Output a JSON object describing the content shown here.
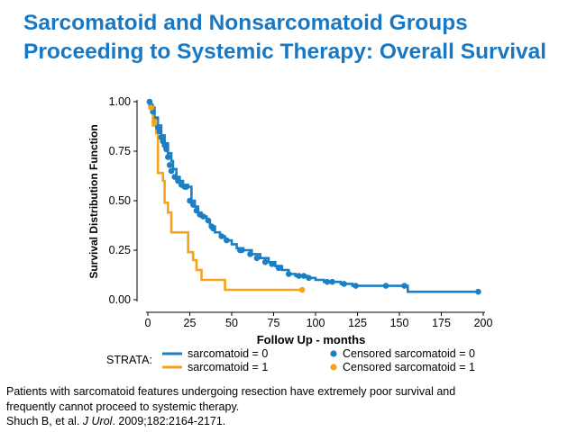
{
  "slide": {
    "title_line1": "Sarcomatoid and Nonsarcomatoid Groups",
    "title_line2": "Proceeding to Systemic Therapy: Overall Survival",
    "footer_line1": "Patients with sarcomatoid features undergoing resection have extremely poor survival and",
    "footer_line2": "frequently cannot proceed to systemic therapy.",
    "citation_authors": "Shuch B, et al. ",
    "citation_journal": "J Urol",
    "citation_rest": ". 2009;182:2164-2171."
  },
  "colors": {
    "title": "#1a78c2",
    "sarcomatoid_0": "#1a7fc4",
    "sarcomatoid_1": "#f7a21b"
  },
  "chart_data": {
    "type": "line",
    "subtype": "kaplan-meier step",
    "xlabel": "Follow Up - months",
    "ylabel": "Survival Distribution Function",
    "xlim": [
      0,
      200
    ],
    "ylim": [
      0,
      1
    ],
    "xticks": [
      "0",
      "25",
      "50",
      "75",
      "100",
      "125",
      "150",
      "175",
      "200"
    ],
    "yticks": [
      "0.00",
      "0.25",
      "0.50",
      "0.75",
      "1.00"
    ],
    "legend": {
      "title": "STRATA:",
      "items": [
        {
          "label": "sarcomatoid = 0",
          "kind": "line",
          "series": 0
        },
        {
          "label": "Censored sarcomatoid = 0",
          "kind": "dot",
          "series": 0
        },
        {
          "label": "sarcomatoid = 1",
          "kind": "line",
          "series": 1
        },
        {
          "label": "Censored sarcomatoid = 1",
          "kind": "dot",
          "series": 1
        }
      ]
    },
    "series": [
      {
        "name": "sarcomatoid = 0",
        "steps": [
          [
            0,
            1.0
          ],
          [
            2,
            0.97
          ],
          [
            4,
            0.92
          ],
          [
            6,
            0.88
          ],
          [
            8,
            0.83
          ],
          [
            10,
            0.79
          ],
          [
            12,
            0.74
          ],
          [
            14,
            0.7
          ],
          [
            15,
            0.66
          ],
          [
            17,
            0.62
          ],
          [
            19,
            0.6
          ],
          [
            21,
            0.58
          ],
          [
            24,
            0.57
          ],
          [
            26,
            0.5
          ],
          [
            28,
            0.47
          ],
          [
            30,
            0.44
          ],
          [
            32,
            0.42
          ],
          [
            35,
            0.4
          ],
          [
            37,
            0.37
          ],
          [
            40,
            0.34
          ],
          [
            43,
            0.32
          ],
          [
            46,
            0.3
          ],
          [
            50,
            0.28
          ],
          [
            53,
            0.26
          ],
          [
            57,
            0.25
          ],
          [
            62,
            0.23
          ],
          [
            67,
            0.21
          ],
          [
            72,
            0.19
          ],
          [
            76,
            0.17
          ],
          [
            80,
            0.15
          ],
          [
            84,
            0.13
          ],
          [
            88,
            0.12
          ],
          [
            95,
            0.11
          ],
          [
            100,
            0.1
          ],
          [
            105,
            0.09
          ],
          [
            115,
            0.08
          ],
          [
            122,
            0.07
          ],
          [
            155,
            0.04
          ],
          [
            197,
            0.04
          ]
        ],
        "censored": [
          [
            1,
            1.0
          ],
          [
            2,
            0.98
          ],
          [
            3,
            0.95
          ],
          [
            5,
            0.91
          ],
          [
            6,
            0.87
          ],
          [
            7,
            0.85
          ],
          [
            8,
            0.82
          ],
          [
            9,
            0.8
          ],
          [
            10,
            0.78
          ],
          [
            11,
            0.76
          ],
          [
            12,
            0.72
          ],
          [
            13,
            0.68
          ],
          [
            14,
            0.65
          ],
          [
            16,
            0.62
          ],
          [
            18,
            0.6
          ],
          [
            20,
            0.58
          ],
          [
            22,
            0.57
          ],
          [
            23,
            0.57
          ],
          [
            25,
            0.5
          ],
          [
            27,
            0.48
          ],
          [
            29,
            0.45
          ],
          [
            31,
            0.43
          ],
          [
            33,
            0.42
          ],
          [
            36,
            0.4
          ],
          [
            38,
            0.37
          ],
          [
            39,
            0.36
          ],
          [
            44,
            0.32
          ],
          [
            47,
            0.3
          ],
          [
            55,
            0.25
          ],
          [
            56,
            0.25
          ],
          [
            61,
            0.23
          ],
          [
            65,
            0.21
          ],
          [
            70,
            0.19
          ],
          [
            74,
            0.18
          ],
          [
            78,
            0.16
          ],
          [
            84,
            0.13
          ],
          [
            90,
            0.12
          ],
          [
            93,
            0.12
          ],
          [
            96,
            0.11
          ],
          [
            107,
            0.09
          ],
          [
            110,
            0.09
          ],
          [
            117,
            0.08
          ],
          [
            124,
            0.07
          ],
          [
            142,
            0.07
          ],
          [
            153,
            0.07
          ],
          [
            197,
            0.04
          ]
        ]
      },
      {
        "name": "sarcomatoid = 1",
        "steps": [
          [
            0,
            1.0
          ],
          [
            1,
            0.97
          ],
          [
            3,
            0.88
          ],
          [
            5,
            0.84
          ],
          [
            6,
            0.64
          ],
          [
            9,
            0.6
          ],
          [
            10,
            0.49
          ],
          [
            12,
            0.44
          ],
          [
            14,
            0.34
          ],
          [
            24,
            0.24
          ],
          [
            27,
            0.2
          ],
          [
            29,
            0.15
          ],
          [
            32,
            0.1
          ],
          [
            46,
            0.05
          ],
          [
            92,
            0.05
          ]
        ],
        "censored": [
          [
            2,
            0.97
          ],
          [
            4,
            0.9
          ],
          [
            92,
            0.05
          ]
        ]
      }
    ]
  }
}
